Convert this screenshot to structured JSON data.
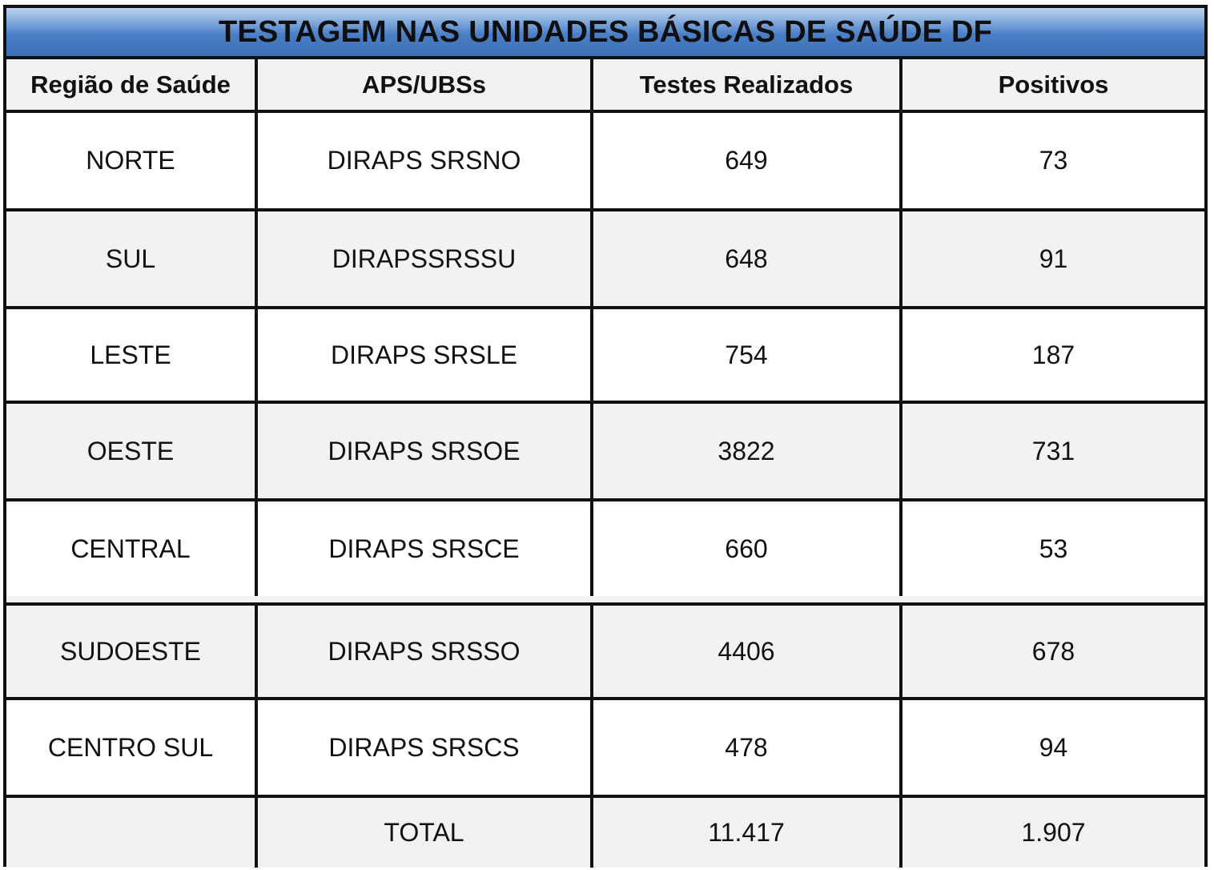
{
  "title": "TESTAGEM NAS UNIDADES BÁSICAS DE SAÚDE DF",
  "columns": [
    "Região de Saúde",
    "APS/UBSs",
    "Testes Realizados",
    "Positivos"
  ],
  "rows": [
    {
      "regiao": "NORTE",
      "aps": "DIRAPS SRSNO",
      "testes": "649",
      "positivos": "73"
    },
    {
      "regiao": "SUL",
      "aps": "DIRAPSSRSSU",
      "testes": "648",
      "positivos": "91"
    },
    {
      "regiao": "LESTE",
      "aps": "DIRAPS SRSLE",
      "testes": "754",
      "positivos": "187"
    },
    {
      "regiao": "OESTE",
      "aps": "DIRAPS SRSOE",
      "testes": "3822",
      "positivos": "731"
    },
    {
      "regiao": "CENTRAL",
      "aps": "DIRAPS SRSCE",
      "testes": "660",
      "positivos": "53"
    },
    {
      "regiao": "SUDOESTE",
      "aps": "DIRAPS SRSSO",
      "testes": "4406",
      "positivos": "678"
    },
    {
      "regiao": "CENTRO SUL",
      "aps": "DIRAPS SRSCS",
      "testes": "478",
      "positivos": "94"
    }
  ],
  "total": {
    "regiao": "",
    "label": "TOTAL",
    "testes": "11.417",
    "positivos": "1.907"
  },
  "colors": {
    "title_bar": "#4a7fc6",
    "alt_row": "#f2f2f2",
    "border": "#111111"
  }
}
